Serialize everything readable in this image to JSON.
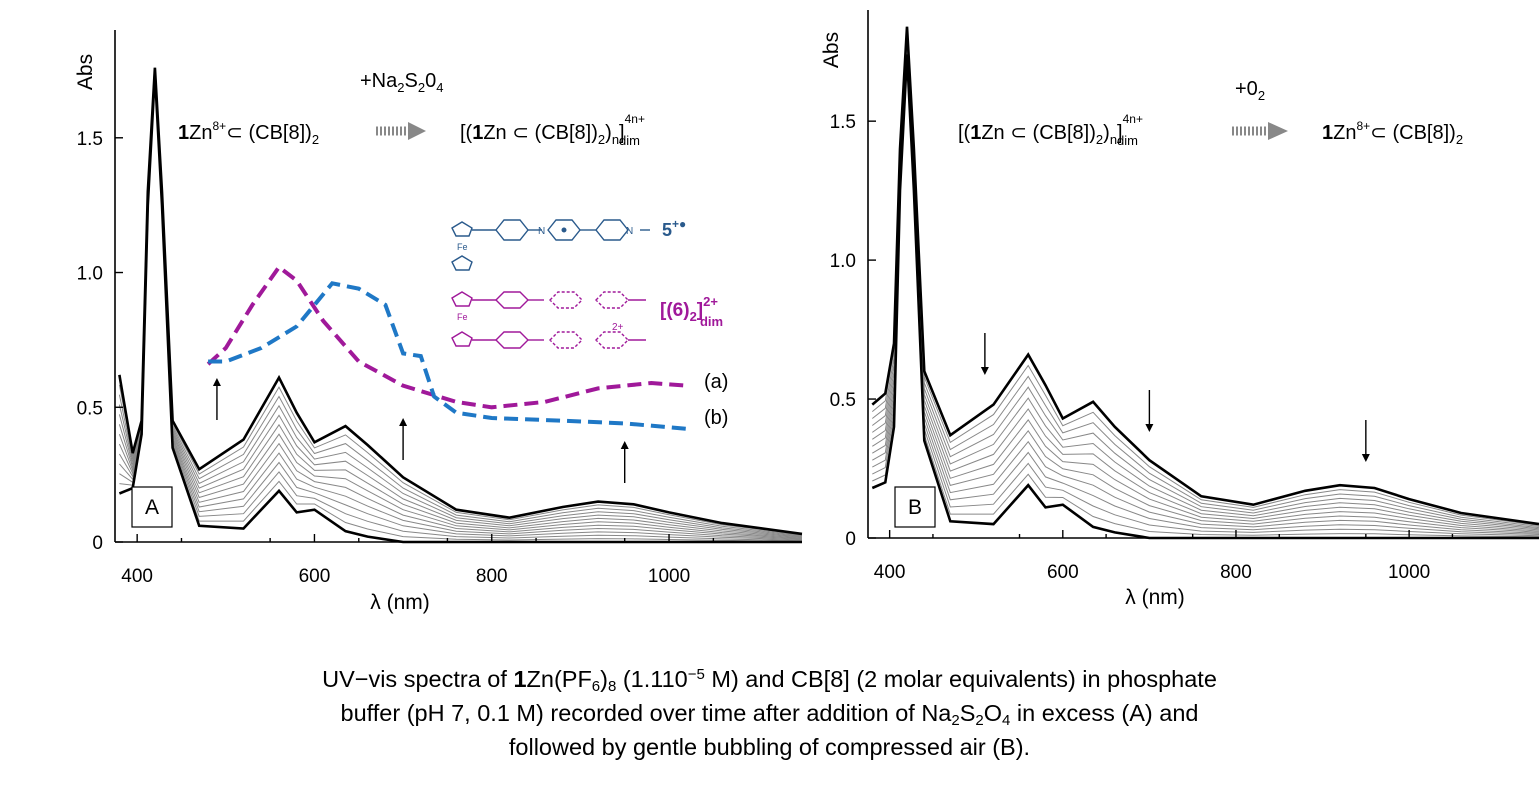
{
  "chart_data": [
    {
      "type": "line",
      "panel_label": "A",
      "xlabel": "λ (nm)",
      "ylabel": "Abs",
      "xlim": [
        375,
        1150
      ],
      "ylim": [
        0,
        1.8
      ],
      "xticks": [
        "400",
        "600",
        "800",
        "1000"
      ],
      "yticks": [
        "0",
        "0.5",
        "1.0",
        "1.5"
      ],
      "annotation_reaction": {
        "reagent": "+Na2S2O4",
        "from": "1Zn8+ ⊂ (CB[8])2",
        "to": "[(1Zn ⊂ (CB[8])2)n]4n+dim"
      },
      "inset_legend": [
        {
          "label": "5+•",
          "color": "#2a5a8c"
        },
        {
          "label": "[(6)2]2+dim",
          "color": "#a0199a"
        }
      ],
      "series_labels": [
        "(a)",
        "(b)"
      ],
      "arrow_direction": "up",
      "x": [
        380,
        395,
        405,
        412,
        420,
        428,
        440,
        470,
        520,
        560,
        580,
        600,
        635,
        660,
        700,
        760,
        820,
        880,
        920,
        960,
        1000,
        1060,
        1150
      ],
      "series": [
        {
          "values": [
            0.62,
            0.33,
            0.45,
            1.3,
            1.76,
            1.3,
            0.45,
            0.27,
            0.38,
            0.61,
            0.48,
            0.37,
            0.43,
            0.36,
            0.24,
            0.12,
            0.09,
            0.13,
            0.15,
            0.14,
            0.11,
            0.07,
            0.03
          ]
        },
        {
          "values": [
            0.18,
            0.2,
            0.4,
            1.25,
            1.74,
            1.25,
            0.35,
            0.06,
            0.05,
            0.19,
            0.11,
            0.12,
            0.04,
            0.02,
            0.0,
            0.0,
            0.0,
            0.0,
            0.0,
            0.0,
            0.0,
            0.0,
            0.0
          ]
        }
      ],
      "reference_series": [
        {
          "name": "(a)",
          "color": "#a0199a",
          "dashed": true,
          "x": [
            480,
            500,
            530,
            560,
            580,
            610,
            650,
            700,
            760,
            800,
            860,
            920,
            980,
            1020
          ],
          "values": [
            0.66,
            0.72,
            0.88,
            1.02,
            0.97,
            0.82,
            0.67,
            0.58,
            0.52,
            0.5,
            0.52,
            0.57,
            0.59,
            0.58
          ]
        },
        {
          "name": "(b)",
          "color": "#1f78c6",
          "dashed": true,
          "x": [
            480,
            500,
            540,
            580,
            600,
            620,
            650,
            680,
            700,
            720,
            735,
            760,
            800,
            880,
            950,
            1020
          ],
          "values": [
            0.67,
            0.67,
            0.72,
            0.8,
            0.88,
            0.96,
            0.94,
            0.88,
            0.7,
            0.69,
            0.54,
            0.48,
            0.46,
            0.45,
            0.44,
            0.42
          ]
        }
      ]
    },
    {
      "type": "line",
      "panel_label": "B",
      "xlabel": "λ (nm)",
      "ylabel": "Abs",
      "xlim": [
        375,
        1150
      ],
      "ylim": [
        0,
        1.8
      ],
      "xticks": [
        "400",
        "600",
        "800",
        "1000"
      ],
      "yticks": [
        "0",
        "0.5",
        "1.0",
        "1.5"
      ],
      "annotation_reaction": {
        "reagent": "+02",
        "from": "[(1Zn ⊂ (CB[8])2)n]4n+dim",
        "to": "1Zn8+ ⊂ (CB[8])2"
      },
      "arrow_direction": "down",
      "x": [
        380,
        395,
        405,
        412,
        420,
        428,
        440,
        470,
        520,
        560,
        580,
        600,
        635,
        660,
        700,
        760,
        820,
        880,
        920,
        960,
        1000,
        1060,
        1150
      ],
      "series": [
        {
          "values": [
            0.48,
            0.52,
            0.7,
            1.4,
            1.84,
            1.4,
            0.6,
            0.37,
            0.48,
            0.66,
            0.55,
            0.43,
            0.49,
            0.4,
            0.28,
            0.15,
            0.12,
            0.17,
            0.19,
            0.18,
            0.14,
            0.09,
            0.05
          ]
        },
        {
          "values": [
            0.18,
            0.2,
            0.4,
            1.25,
            1.74,
            1.25,
            0.35,
            0.06,
            0.05,
            0.19,
            0.11,
            0.12,
            0.04,
            0.02,
            0.0,
            0.0,
            0.0,
            0.0,
            0.0,
            0.0,
            0.0,
            0.0,
            0.0
          ]
        }
      ]
    }
  ],
  "caption": {
    "line1_pre": "UV−vis spectra of  ",
    "line1_bold": "1",
    "line1_zn": "Zn(PF",
    "line1_sub6": "6",
    "line1_close": ")",
    "line1_sub8": "8",
    "line1_conc": " (1.110",
    "line1_exp": "−5",
    "line1_post": " M) and CB[8] (2 molar equivalents) in phosphate",
    "line2_pre": "buffer (pH 7, 0.1 M) recorded over time after addition of  Na",
    "line2_s2": "2",
    "line2_s": "S",
    "line2_o": "O",
    "line2_o4": "4",
    "line2_post": " in excess (A) and",
    "line3": "followed by gentle bubbling of compressed air (B)."
  },
  "colors": {
    "axis": "#000000",
    "trace_gray": "#888888",
    "trace_dark": "#000000",
    "curve_a": "#a0199a",
    "curve_b": "#1f78c6",
    "molecule_blue": "#2a5a8c"
  }
}
